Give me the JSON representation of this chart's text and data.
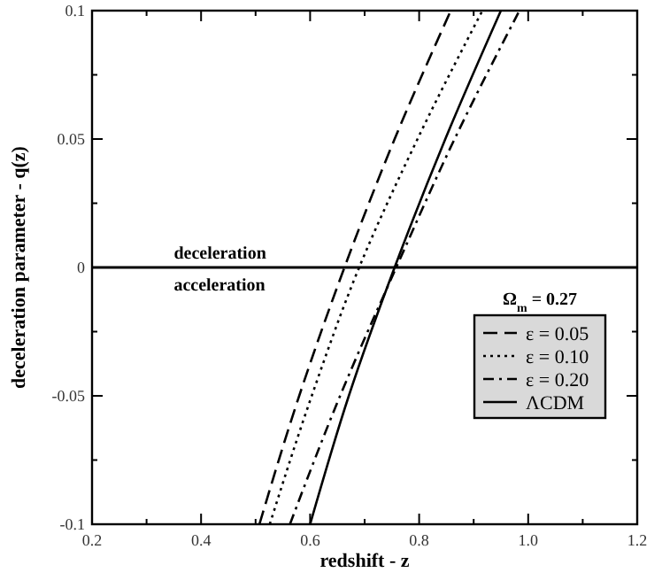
{
  "chart_data": {
    "type": "line",
    "xlabel": "redshift - z",
    "ylabel": "deceleration parameter - q(z)",
    "xlim": [
      0.2,
      1.2
    ],
    "ylim": [
      -0.1,
      0.1
    ],
    "xticks": [
      0.2,
      {
        "value": 0.3,
        "label": null
      },
      0.4,
      {
        "value": 0.5,
        "label": null
      },
      0.6,
      {
        "value": 0.7,
        "label": null
      },
      0.8,
      {
        "value": 0.9,
        "label": null
      },
      {
        "value": 1,
        "label": "1.0"
      },
      {
        "value": 1.1,
        "label": null
      },
      1.2
    ],
    "yticks": [
      -0.1,
      {
        "value": -0.075,
        "label": null
      },
      -0.05,
      {
        "value": -0.025,
        "label": null
      },
      0,
      {
        "value": 0.025,
        "label": null
      },
      0.05,
      {
        "value": 0.075,
        "label": null
      },
      0.1
    ],
    "grid": false,
    "legend": "bottom right",
    "legend_title": "Ω$_{m}$ = 0.27",
    "series": [
      {
        "name": "ε = 0.05",
        "color": "#000000",
        "line_style": "dashed",
        "x": [
          0.507,
          0.58,
          0.663,
          0.755,
          0.858
        ],
        "values": [
          -0.1,
          -0.05,
          0,
          0.05,
          0.1
        ]
      },
      {
        "name": "ε = 0.10",
        "color": "#000000",
        "line_style": "dotted",
        "x": [
          0.526,
          0.603,
          0.69,
          0.797,
          0.916
        ],
        "values": [
          -0.1,
          -0.05,
          0,
          0.05,
          0.1
        ]
      },
      {
        "name": "ε = 0.20",
        "color": "#000000",
        "line_style": "dashdot",
        "x": [
          0.563,
          0.655,
          0.758,
          0.865,
          0.984
        ],
        "values": [
          -0.1,
          -0.05,
          0,
          0.05,
          0.1
        ]
      },
      {
        "name": "ΛCDM",
        "color": "#000000",
        "line_style": "solid",
        "x": [
          0.6,
          0.671,
          0.755,
          0.848,
          0.95
        ],
        "values": [
          -0.1,
          -0.05,
          0,
          0.05,
          0.1
        ]
      }
    ],
    "ref_lines": [
      {
        "axis": "y",
        "value": 0,
        "color": "#000000"
      }
    ],
    "annotations": [
      {
        "text": "deceleration",
        "x": 0.35,
        "y": 0
      },
      {
        "text": "acceleration",
        "x": 0.35,
        "y": 0
      }
    ]
  }
}
